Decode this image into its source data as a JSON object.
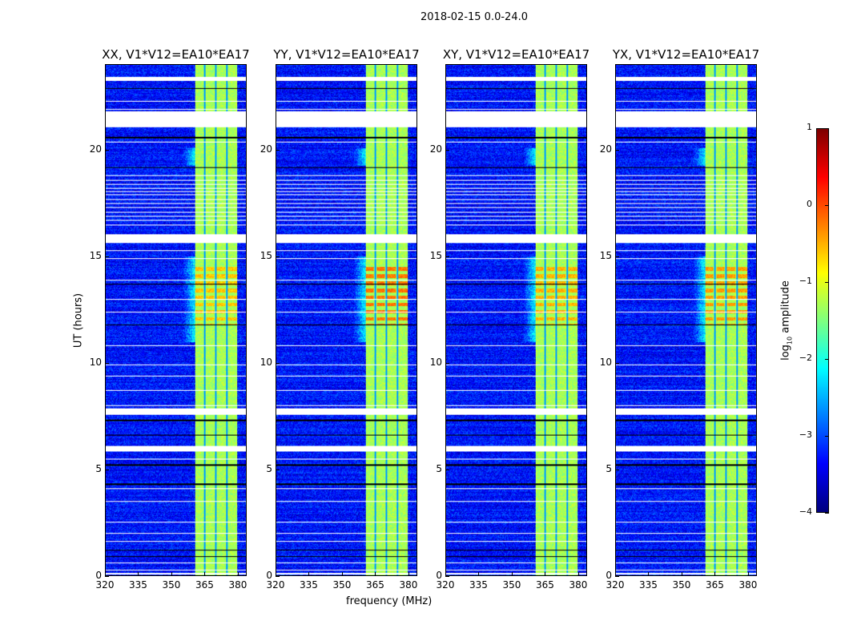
{
  "chart_data": {
    "type": "heatmap",
    "title": "2018-02-15 0.0-24.0",
    "xlabel": "frequency (MHz)",
    "ylabel": "UT (hours)",
    "xlim": [
      320,
      384
    ],
    "ylim": [
      0,
      24
    ],
    "xticks": [
      320,
      335,
      350,
      365,
      380
    ],
    "yticks": [
      0,
      5,
      10,
      15,
      20
    ],
    "panels": [
      {
        "title": "XX, V1*V12=EA10*EA17",
        "hot_scale": 1.0,
        "mid_level": -0.6
      },
      {
        "title": "YY, V1*V12=EA10*EA17",
        "hot_scale": 1.0,
        "mid_level": -0.2
      },
      {
        "title": "XY, V1*V12=EA10*EA17",
        "hot_scale": 1.0,
        "mid_level": -0.5
      },
      {
        "title": "YX, V1*V12=EA10*EA17",
        "hot_scale": 0.7,
        "mid_level": -0.4
      }
    ],
    "background_level": -3.3,
    "rfi_band_mhz": [
      360.5,
      380
    ],
    "rfi_band_level": -1.3,
    "band_gaps_mhz": [
      365,
      370,
      375
    ],
    "hot_regions": [
      {
        "t": [
          19.3,
          20.1
        ],
        "level": 0.3
      },
      {
        "t": [
          8.3,
          8.9
        ],
        "level": -0.3
      }
    ],
    "mid_region_t": [
      11.8,
      14.5
    ],
    "flagged_white_hours": [
      [
        23.25,
        23.45
      ],
      [
        21.1,
        21.85
      ],
      [
        15.65,
        16.05
      ],
      [
        7.55,
        7.85
      ],
      [
        5.85,
        6.1
      ],
      [
        0.05,
        0.15
      ]
    ],
    "thin_white_hours": [
      22.3,
      21.95,
      20.4,
      18.8,
      18.6,
      18.4,
      18.2,
      18.05,
      17.9,
      17.7,
      17.5,
      17.3,
      17.1,
      16.9,
      16.7,
      16.5,
      15.3,
      14.9,
      13.9,
      13.0,
      12.4,
      10.8,
      9.9,
      9.4,
      8.7,
      8.0,
      5.5,
      4.1,
      3.5,
      2.5,
      2.0,
      1.6,
      0.6,
      0.25
    ],
    "black_hours": [
      22.9,
      20.6,
      19.2,
      15.9,
      13.7,
      11.8,
      7.3,
      6.6,
      5.2,
      4.3,
      1.2,
      0.9
    ],
    "colorbar": {
      "label": "log10 amplitude",
      "label_main": "log",
      "label_sub": "10",
      "label_rest": " amplitude",
      "range": [
        -4,
        1
      ],
      "ticks": [
        "1",
        "0",
        "−1",
        "−2",
        "−3",
        "−4"
      ],
      "colormap": "jet"
    }
  }
}
